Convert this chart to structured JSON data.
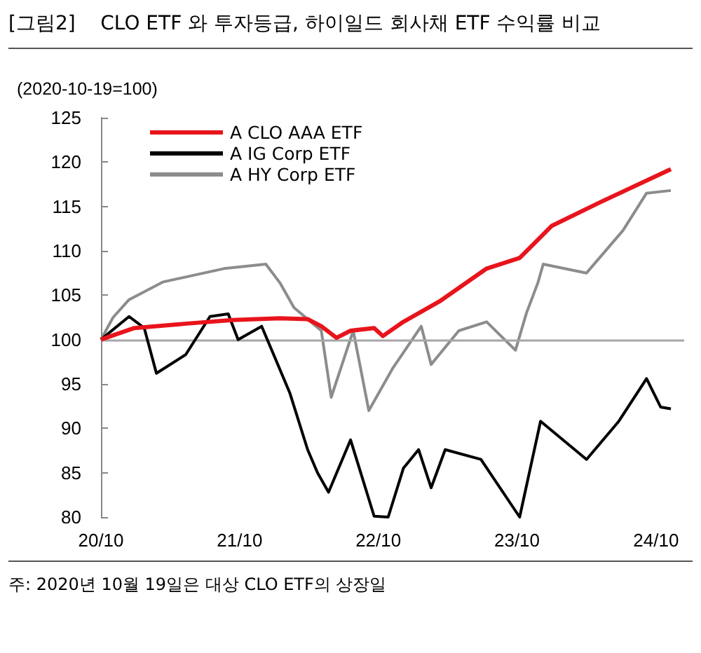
{
  "chart_data": {
    "type": "line",
    "title": "[그림2]    CLO ETF 와 투자등급, 하이일드 회사채 ETF 수익률 비교",
    "ylabel": "(2020-10-19=100)",
    "annotations": [
      "주: 2020년 10월 19일은 대상 CLO ETF의 상장일"
    ],
    "ylim": [
      80,
      125
    ],
    "yticks": [
      80,
      85,
      90,
      95,
      100,
      105,
      110,
      115,
      120,
      125
    ],
    "xlim": [
      "2020-10-19",
      "2025-01-01"
    ],
    "xticks": [
      {
        "value": "2020-10-19",
        "label": "20/10"
      },
      {
        "value": "2021-10-19",
        "label": "21/10"
      },
      {
        "value": "2022-10-19",
        "label": "22/10"
      },
      {
        "value": "2023-10-19",
        "label": "23/10"
      },
      {
        "value": "2024-10-19",
        "label": "24/10"
      }
    ],
    "grid": false,
    "legend": "top left",
    "marker": "none",
    "line_style": "solid",
    "ref_lines": [
      {
        "axis": "y",
        "value": 100,
        "color": "#a6a6a6"
      }
    ],
    "series": [
      {
        "name": "A CLO AAA ETF",
        "color": "#e8141c",
        "x": [
          "2020-10-19",
          "2021-01-15",
          "2021-06-01",
          "2021-10-01",
          "2022-02-01",
          "2022-04-16",
          "2022-05-22",
          "2022-07-01",
          "2022-08-07",
          "2022-10-08",
          "2022-10-31",
          "2022-12-24",
          "2023-03-29",
          "2023-07-31",
          "2023-10-26",
          "2024-01-18",
          "2024-05-26",
          "2024-11-27"
        ],
        "values": [
          100,
          101.3,
          101.8,
          102.2,
          102.4,
          102.3,
          101.5,
          100.2,
          101,
          101.3,
          100.4,
          102,
          104.3,
          108,
          109.2,
          112.8,
          115.5,
          119.2
        ]
      },
      {
        "name": "A IG Corp ETF",
        "color": "#000000",
        "x": [
          "2020-10-19",
          "2021-01-01",
          "2021-02-10",
          "2021-03-14",
          "2021-05-30",
          "2021-08-02",
          "2021-09-19",
          "2021-10-15",
          "2021-12-16",
          "2022-02-28",
          "2022-04-16",
          "2022-05-12",
          "2022-06-10",
          "2022-08-07",
          "2022-10-08",
          "2022-11-14",
          "2022-12-24",
          "2023-02-02",
          "2023-03-07",
          "2023-04-13",
          "2023-07-16",
          "2023-10-26",
          "2023-12-20",
          "2024-04-19",
          "2024-07-13",
          "2024-09-24",
          "2024-10-31",
          "2024-11-27"
        ],
        "values": [
          100,
          102.6,
          101.3,
          96.2,
          98.3,
          102.6,
          102.9,
          100,
          101.5,
          94,
          87.6,
          85,
          82.8,
          88.7,
          80.1,
          80,
          85.5,
          87.6,
          83.3,
          87.6,
          86.5,
          80,
          90.8,
          86.5,
          90.8,
          95.6,
          92.4,
          92.2
        ]
      },
      {
        "name": "A HY Corp ETF",
        "color": "#8c8c8c",
        "x": [
          "2020-10-19",
          "2020-11-20",
          "2021-01-01",
          "2021-04-01",
          "2021-09-08",
          "2021-12-27",
          "2022-02-02",
          "2022-03-11",
          "2022-05-22",
          "2022-06-17",
          "2022-08-14",
          "2022-09-24",
          "2022-11-25",
          "2023-02-09",
          "2023-03-07",
          "2023-05-19",
          "2023-07-31",
          "2023-10-15",
          "2023-11-13",
          "2023-12-13",
          "2023-12-27",
          "2024-04-19",
          "2024-07-24",
          "2024-09-24",
          "2024-11-27"
        ],
        "values": [
          100,
          102.5,
          104.5,
          106.5,
          108,
          108.5,
          106.4,
          103.6,
          101,
          93.5,
          101,
          92,
          96.7,
          101.5,
          97.2,
          101,
          102,
          98.8,
          103,
          106.4,
          108.5,
          107.5,
          112.3,
          116.5,
          116.8
        ]
      }
    ]
  }
}
